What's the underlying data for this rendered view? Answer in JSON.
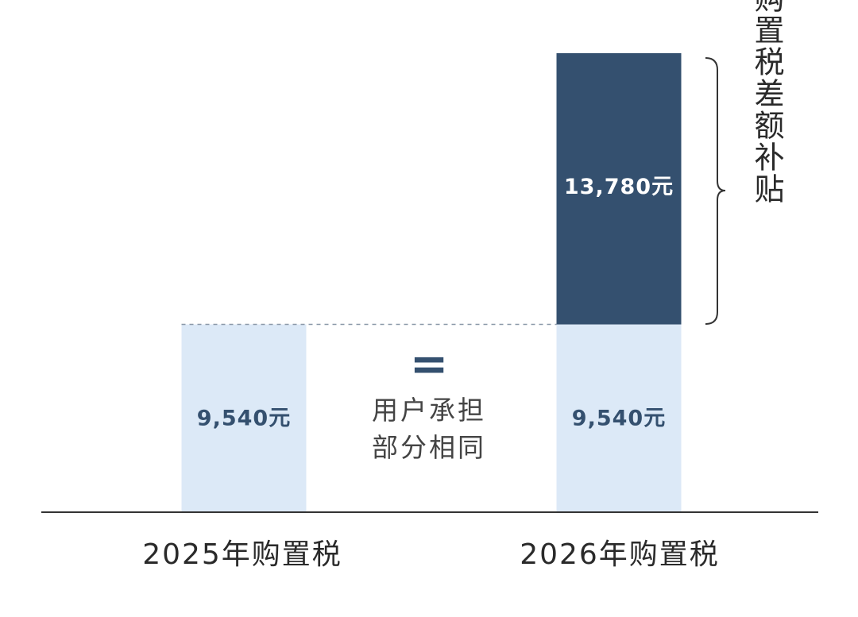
{
  "colors": {
    "light_bar": "#dce9f7",
    "dark_bar": "#34506f",
    "axis": "#333333",
    "dashed_line": "#8a98a8",
    "equals": "#34506f"
  },
  "chart_data": {
    "type": "bar",
    "stacked": true,
    "categories": [
      "2025年购置税",
      "2026年购置税"
    ],
    "series": [
      {
        "values": [
          9540,
          9540
        ],
        "labels": [
          "9,540元",
          "9,540元"
        ],
        "color": "#dce9f7"
      },
      {
        "values": [
          0,
          13780
        ],
        "labels": [
          "",
          "13,780元"
        ],
        "color": "#34506f"
      }
    ],
    "ylim": [
      0,
      23320
    ],
    "grid": false,
    "legend": "none",
    "annotations": {
      "equals_symbol": "=",
      "middle_text_lines": [
        "用户承担",
        "部分相同"
      ],
      "bracket_text": "购置税差额补贴"
    }
  }
}
